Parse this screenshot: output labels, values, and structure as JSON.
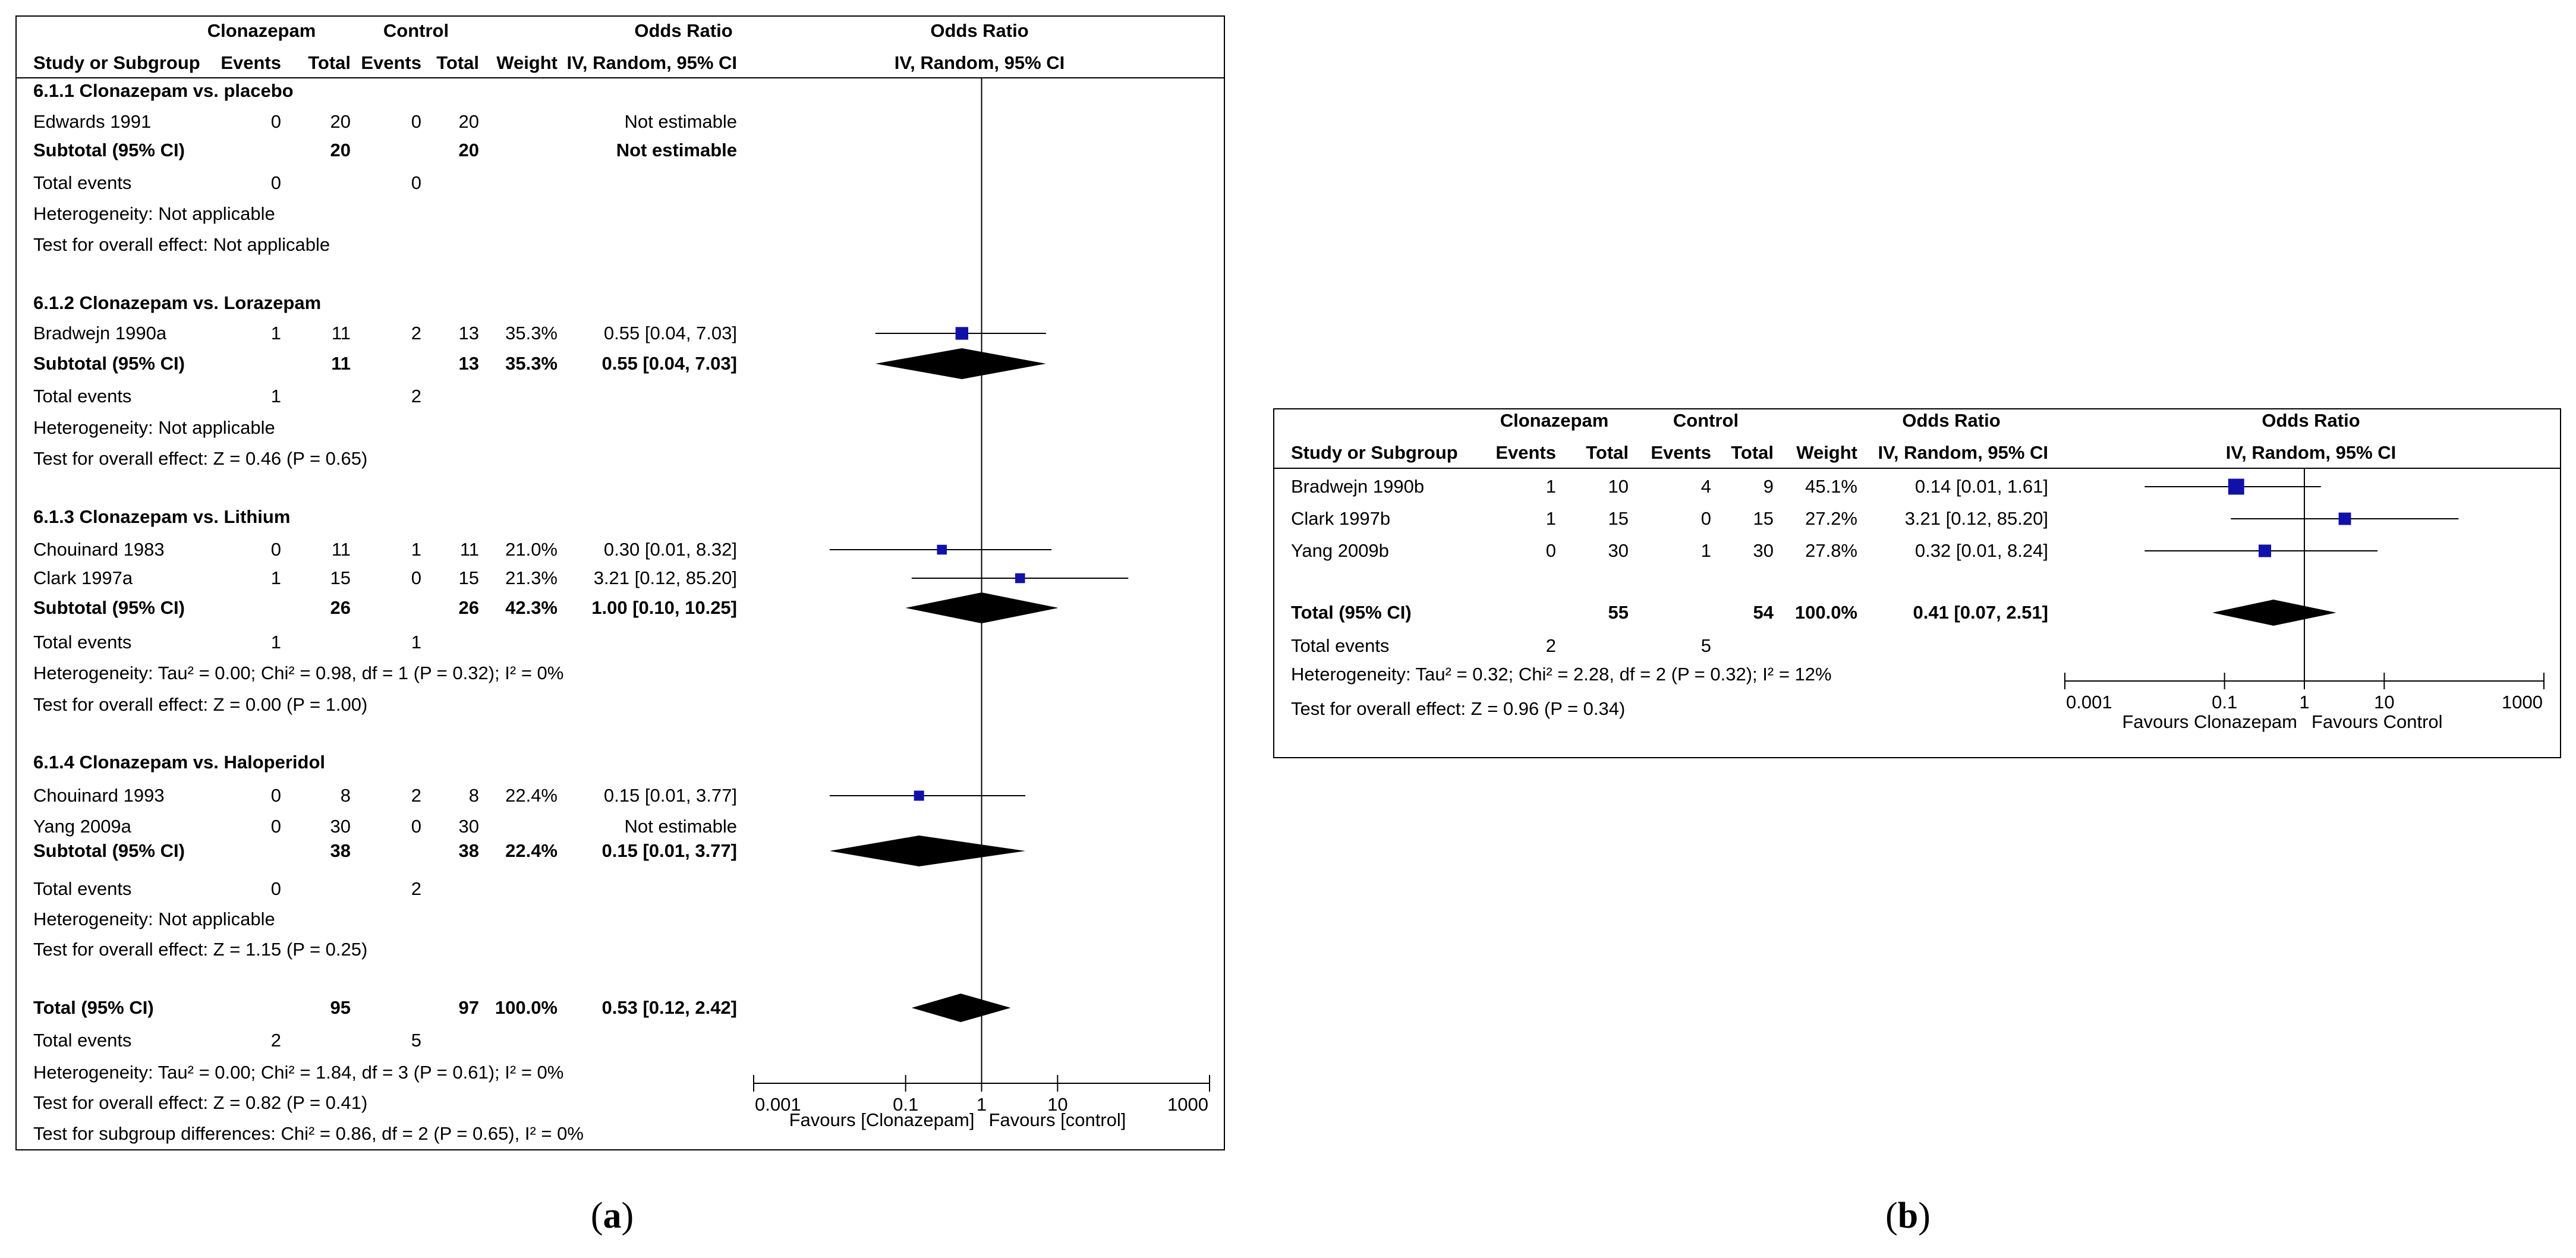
{
  "colors": {
    "marker": "#1111aa",
    "diamond": "#000000",
    "border": "#000000"
  },
  "panels": [
    {
      "id": "a",
      "caption_open": "(",
      "caption_letter": "a",
      "caption_close": ")",
      "headers": {
        "group1": "Clonazepam",
        "group2": "Control",
        "or_col": "Odds Ratio",
        "plot_top": "Odds Ratio",
        "study": "Study or Subgroup",
        "ev1": "Events",
        "tot1": "Total",
        "ev2": "Events",
        "tot2": "Total",
        "weight": "Weight",
        "method": "IV, Random, 95% CI",
        "plot_method": "IV, Random, 95% CI"
      },
      "axis": {
        "ticks": [
          "0.001",
          "0.1",
          "1",
          "10",
          "1000"
        ],
        "favours_left": "Favours [Clonazepam]",
        "favours_right": "Favours [control]"
      },
      "subgroups": [
        {
          "title": "6.1.1 Clonazepam vs. placebo",
          "studies": [
            {
              "name": "Edwards 1991",
              "ev1": "0",
              "tot1": "20",
              "ev2": "0",
              "tot2": "20",
              "weight": "",
              "or_text": "Not estimable",
              "or": null,
              "lo": null,
              "hi": null,
              "w": null
            }
          ],
          "subtotal": {
            "label": "Subtotal (95% CI)",
            "tot1": "20",
            "tot2": "20",
            "weight": "",
            "or_text": "Not estimable",
            "or": null,
            "lo": null,
            "hi": null
          },
          "total_events": {
            "label": "Total events",
            "ev1": "0",
            "ev2": "0"
          },
          "heterogeneity": "Heterogeneity: Not applicable",
          "overall_effect": "Test for overall effect: Not applicable"
        },
        {
          "title": "6.1.2 Clonazepam vs. Lorazepam",
          "studies": [
            {
              "name": "Bradwejn 1990a",
              "ev1": "1",
              "tot1": "11",
              "ev2": "2",
              "tot2": "13",
              "weight": "35.3%",
              "or_text": "0.55 [0.04, 7.03]",
              "or": 0.55,
              "lo": 0.04,
              "hi": 7.03,
              "w": 35.3
            }
          ],
          "subtotal": {
            "label": "Subtotal (95% CI)",
            "tot1": "11",
            "tot2": "13",
            "weight": "35.3%",
            "or_text": "0.55 [0.04, 7.03]",
            "or": 0.55,
            "lo": 0.04,
            "hi": 7.03
          },
          "total_events": {
            "label": "Total events",
            "ev1": "1",
            "ev2": "2"
          },
          "heterogeneity": "Heterogeneity: Not applicable",
          "overall_effect": "Test for overall effect: Z = 0.46 (P = 0.65)"
        },
        {
          "title": "6.1.3 Clonazepam vs. Lithium",
          "studies": [
            {
              "name": "Chouinard 1983",
              "ev1": "0",
              "tot1": "11",
              "ev2": "1",
              "tot2": "11",
              "weight": "21.0%",
              "or_text": "0.30 [0.01, 8.32]",
              "or": 0.3,
              "lo": 0.01,
              "hi": 8.32,
              "w": 21.0
            },
            {
              "name": "Clark 1997a",
              "ev1": "1",
              "tot1": "15",
              "ev2": "0",
              "tot2": "15",
              "weight": "21.3%",
              "or_text": "3.21 [0.12, 85.20]",
              "or": 3.21,
              "lo": 0.12,
              "hi": 85.2,
              "w": 21.3
            }
          ],
          "subtotal": {
            "label": "Subtotal (95% CI)",
            "tot1": "26",
            "tot2": "26",
            "weight": "42.3%",
            "or_text": "1.00 [0.10, 10.25]",
            "or": 1.0,
            "lo": 0.1,
            "hi": 10.25
          },
          "total_events": {
            "label": "Total events",
            "ev1": "1",
            "ev2": "1"
          },
          "heterogeneity": "Heterogeneity: Tau² = 0.00; Chi² = 0.98, df = 1 (P = 0.32); I² = 0%",
          "overall_effect": "Test for overall effect: Z = 0.00 (P = 1.00)"
        },
        {
          "title": "6.1.4 Clonazepam vs. Haloperidol",
          "studies": [
            {
              "name": "Chouinard 1993",
              "ev1": "0",
              "tot1": "8",
              "ev2": "2",
              "tot2": "8",
              "weight": "22.4%",
              "or_text": "0.15 [0.01, 3.77]",
              "or": 0.15,
              "lo": 0.01,
              "hi": 3.77,
              "w": 22.4
            },
            {
              "name": "Yang 2009a",
              "ev1": "0",
              "tot1": "30",
              "ev2": "0",
              "tot2": "30",
              "weight": "",
              "or_text": "Not estimable",
              "or": null,
              "lo": null,
              "hi": null,
              "w": null
            }
          ],
          "subtotal": {
            "label": "Subtotal (95% CI)",
            "tot1": "38",
            "tot2": "38",
            "weight": "22.4%",
            "or_text": "0.15 [0.01, 3.77]",
            "or": 0.15,
            "lo": 0.01,
            "hi": 3.77
          },
          "total_events": {
            "label": "Total events",
            "ev1": "0",
            "ev2": "2"
          },
          "heterogeneity": "Heterogeneity: Not applicable",
          "overall_effect": "Test for overall effect: Z = 1.15 (P = 0.25)"
        }
      ],
      "total": {
        "label": "Total (95% CI)",
        "tot1": "95",
        "tot2": "97",
        "weight": "100.0%",
        "or_text": "0.53 [0.12, 2.42]",
        "or": 0.53,
        "lo": 0.12,
        "hi": 2.42
      },
      "total_events": {
        "label": "Total events",
        "ev1": "2",
        "ev2": "5"
      },
      "footer": [
        "Heterogeneity: Tau² = 0.00; Chi² = 1.84, df = 3 (P = 0.61); I² = 0%",
        "Test for overall effect: Z = 0.82 (P = 0.41)",
        "Test for subgroup differences: Chi² = 0.86, df = 2 (P = 0.65), I² = 0%"
      ]
    },
    {
      "id": "b",
      "caption_open": "(",
      "caption_letter": "b",
      "caption_close": ")",
      "headers": {
        "group1": "Clonazepam",
        "group2": "Control",
        "or_col": "Odds Ratio",
        "plot_top": "Odds Ratio",
        "study": "Study or Subgroup",
        "ev1": "Events",
        "tot1": "Total",
        "ev2": "Events",
        "tot2": "Total",
        "weight": "Weight",
        "method": "IV, Random, 95% CI",
        "plot_method": "IV, Random, 95% CI"
      },
      "axis": {
        "ticks": [
          "0.001",
          "0.1",
          "1",
          "10",
          "1000"
        ],
        "favours_left": "Favours Clonazepam",
        "favours_right": "Favours Control"
      },
      "studies": [
        {
          "name": "Bradwejn 1990b",
          "ev1": "1",
          "tot1": "10",
          "ev2": "4",
          "tot2": "9",
          "weight": "45.1%",
          "or_text": "0.14 [0.01, 1.61]",
          "or": 0.14,
          "lo": 0.01,
          "hi": 1.61,
          "w": 45.1
        },
        {
          "name": "Clark 1997b",
          "ev1": "1",
          "tot1": "15",
          "ev2": "0",
          "tot2": "15",
          "weight": "27.2%",
          "or_text": "3.21 [0.12, 85.20]",
          "or": 3.21,
          "lo": 0.12,
          "hi": 85.2,
          "w": 27.2
        },
        {
          "name": "Yang 2009b",
          "ev1": "0",
          "tot1": "30",
          "ev2": "1",
          "tot2": "30",
          "weight": "27.8%",
          "or_text": "0.32 [0.01, 8.24]",
          "or": 0.32,
          "lo": 0.01,
          "hi": 8.24,
          "w": 27.8
        }
      ],
      "total": {
        "label": "Total (95% CI)",
        "tot1": "55",
        "tot2": "54",
        "weight": "100.0%",
        "or_text": "0.41 [0.07, 2.51]",
        "or": 0.41,
        "lo": 0.07,
        "hi": 2.51
      },
      "total_events": {
        "label": "Total events",
        "ev1": "2",
        "ev2": "5"
      },
      "footer": [
        "Heterogeneity: Tau² = 0.32; Chi² = 2.28, df = 2 (P = 0.32); I² = 12%",
        "Test for overall effect: Z = 0.96 (P = 0.34)"
      ]
    }
  ],
  "chart_data": [
    {
      "type": "forest",
      "title": "(a)",
      "xlabel": "Odds Ratio (IV, Random, 95% CI), log scale",
      "xlim": [
        0.001,
        1000
      ],
      "x_ticks": [
        0.001,
        0.1,
        1,
        10,
        1000
      ],
      "favours": [
        "Favours [Clonazepam]",
        "Favours [control]"
      ],
      "series": [
        {
          "name": "Bradwejn 1990a",
          "or": 0.55,
          "ci": [
            0.04,
            7.03
          ],
          "weight": 35.3
        },
        {
          "name": "Chouinard 1983",
          "or": 0.3,
          "ci": [
            0.01,
            8.32
          ],
          "weight": 21.0
        },
        {
          "name": "Clark 1997a",
          "or": 3.21,
          "ci": [
            0.12,
            85.2
          ],
          "weight": 21.3
        },
        {
          "name": "Chouinard 1993",
          "or": 0.15,
          "ci": [
            0.01,
            3.77
          ],
          "weight": 22.4
        }
      ],
      "pooled": [
        {
          "name": "Subtotal 6.1.2",
          "or": 0.55,
          "ci": [
            0.04,
            7.03
          ]
        },
        {
          "name": "Subtotal 6.1.3",
          "or": 1.0,
          "ci": [
            0.1,
            10.25
          ]
        },
        {
          "name": "Subtotal 6.1.4",
          "or": 0.15,
          "ci": [
            0.01,
            3.77
          ]
        },
        {
          "name": "Total",
          "or": 0.53,
          "ci": [
            0.12,
            2.42
          ]
        }
      ]
    },
    {
      "type": "forest",
      "title": "(b)",
      "xlabel": "Odds Ratio (IV, Random, 95% CI), log scale",
      "xlim": [
        0.001,
        1000
      ],
      "x_ticks": [
        0.001,
        0.1,
        1,
        10,
        1000
      ],
      "favours": [
        "Favours Clonazepam",
        "Favours Control"
      ],
      "series": [
        {
          "name": "Bradwejn 1990b",
          "or": 0.14,
          "ci": [
            0.01,
            1.61
          ],
          "weight": 45.1
        },
        {
          "name": "Clark 1997b",
          "or": 3.21,
          "ci": [
            0.12,
            85.2
          ],
          "weight": 27.2
        },
        {
          "name": "Yang 2009b",
          "or": 0.32,
          "ci": [
            0.01,
            8.24
          ],
          "weight": 27.8
        }
      ],
      "pooled": [
        {
          "name": "Total",
          "or": 0.41,
          "ci": [
            0.07,
            2.51
          ]
        }
      ]
    }
  ]
}
